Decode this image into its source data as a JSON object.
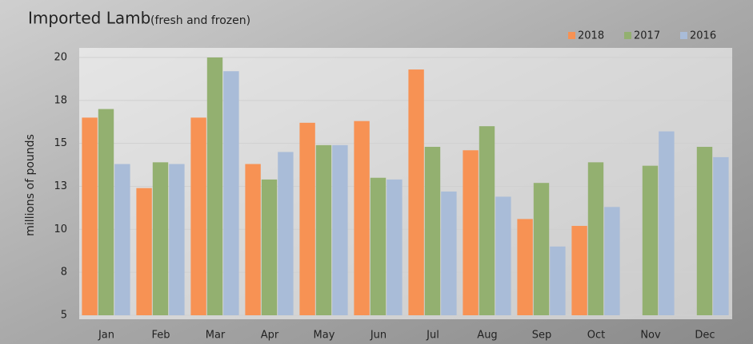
{
  "chart_data": {
    "type": "bar",
    "title": "Imported Lamb",
    "subtitle": "(fresh and frozen)",
    "y_label": "millions of pounds",
    "categories": [
      "Jan",
      "Feb",
      "Mar",
      "Apr",
      "May",
      "Jun",
      "Jul",
      "Aug",
      "Sep",
      "Oct",
      "Nov",
      "Dec"
    ],
    "series": [
      {
        "name": "2018",
        "color": "#f79254",
        "values": [
          16.5,
          12.4,
          16.5,
          13.8,
          16.2,
          16.3,
          19.3,
          14.6,
          10.6,
          10.2,
          null,
          null
        ]
      },
      {
        "name": "2017",
        "color": "#93b070",
        "values": [
          17.0,
          13.9,
          20.0,
          12.9,
          14.9,
          13.0,
          14.8,
          16.0,
          12.7,
          13.9,
          13.7,
          14.8
        ]
      },
      {
        "name": "2016",
        "color": "#a9bcd8",
        "values": [
          13.8,
          13.8,
          19.2,
          14.5,
          14.9,
          12.9,
          12.2,
          11.9,
          9.0,
          11.3,
          15.7,
          14.2
        ]
      }
    ],
    "ylim": [
      5,
      20
    ],
    "yticks": [
      5,
      {
        "value": 7.5,
        "label": "8"
      },
      10,
      {
        "value": 12.5,
        "label": "13"
      },
      15,
      {
        "value": 17.5,
        "label": "18"
      },
      20
    ],
    "grid": true,
    "legend": "top-right"
  }
}
